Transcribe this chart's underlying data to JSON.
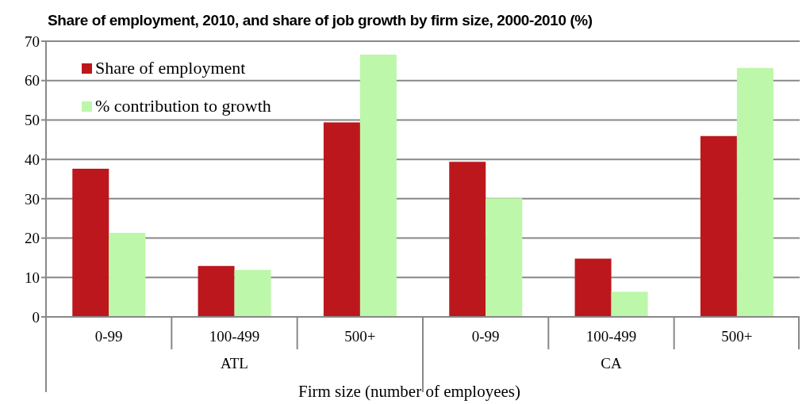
{
  "chart_data": {
    "type": "bar",
    "title": "Share of employment, 2010, and share of job growth by firm size, 2000-2010 (%)",
    "xlabel": "Firm size (number of employees)",
    "categories": [
      "0-99",
      "100-499",
      "500+",
      "0-99",
      "100-499",
      "500+"
    ],
    "annotations": [
      "ATL",
      "CA"
    ],
    "series": [
      {
        "name": "Share of employment",
        "color": "#bc171c",
        "values": [
          37.6,
          12.9,
          49.4,
          39.4,
          14.8,
          45.9
        ]
      },
      {
        "name": "% contribution to growth",
        "color": "#bdf7a9",
        "values": [
          21.3,
          11.9,
          66.6,
          30.1,
          6.4,
          63.2
        ]
      }
    ],
    "ylim": [
      0,
      70
    ],
    "yticks": [
      0,
      10,
      20,
      30,
      40,
      50,
      60,
      70
    ],
    "grid": "y",
    "legend": "top left"
  }
}
